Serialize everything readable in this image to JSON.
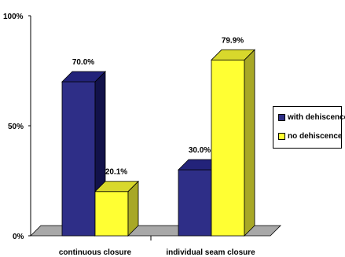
{
  "chart_data": {
    "type": "bar",
    "categories": [
      "continuous closure",
      "individual seam closure"
    ],
    "series": [
      {
        "name": "with dehiscence",
        "values": [
          70.0,
          30.0
        ],
        "color": "#2E2E87"
      },
      {
        "name": "no dehiscence",
        "values": [
          20.1,
          79.9
        ],
        "color": "#FFFF33"
      }
    ],
    "data_labels": [
      [
        "70.0%",
        "30.0%"
      ],
      [
        "20.1%",
        "79.9%"
      ]
    ],
    "yticks": [
      "100%",
      "50%",
      "0%"
    ],
    "ytick_values": [
      100,
      50,
      0
    ],
    "ylim": [
      0,
      100
    ],
    "grid": false,
    "three_d": true,
    "legend_position": "right",
    "colors": {
      "with_dehiscence_side": "#12124A",
      "with_dehiscence_top": "#23237A",
      "no_dehiscence_side": "#A8A826",
      "no_dehiscence_top": "#D8D82C",
      "floor": "#A8A8A8"
    }
  }
}
